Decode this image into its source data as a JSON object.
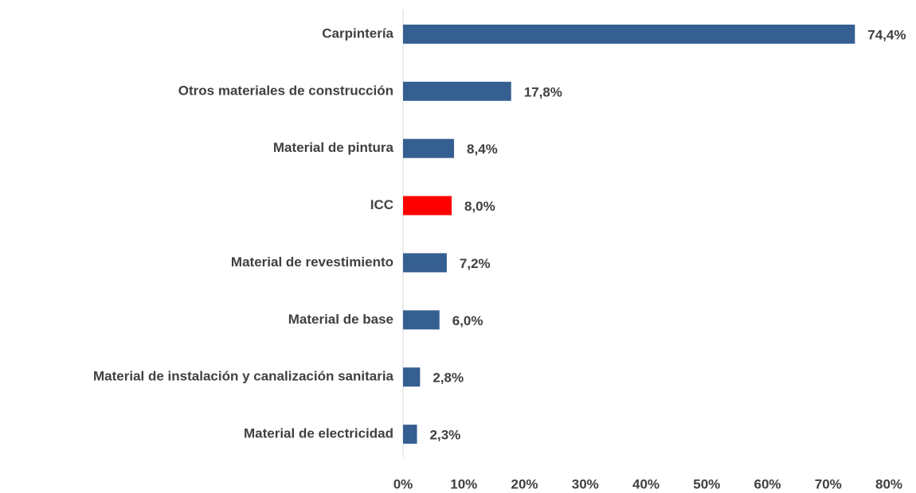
{
  "chart_data": {
    "type": "hbar",
    "categories": [
      "Carpintería",
      "Otros materiales de construcción",
      "Material de pintura",
      "ICC",
      "Material de revestimiento",
      "Material de base",
      "Material de instalación y canalización sanitaria",
      "Material de electricidad"
    ],
    "values": [
      74.4,
      17.8,
      8.4,
      8.0,
      7.2,
      6.0,
      2.8,
      2.3
    ],
    "value_labels": [
      "74,4%",
      "17,8%",
      "8,4%",
      "8,0%",
      "7,2%",
      "6,0%",
      "2,8%",
      "2,3%"
    ],
    "colors": [
      "#365f91",
      "#365f91",
      "#365f91",
      "#ff0000",
      "#365f91",
      "#365f91",
      "#365f91",
      "#365f91"
    ],
    "xlim": [
      0,
      80
    ],
    "xticks": [
      {
        "value": 0,
        "label": "0%"
      },
      {
        "value": 10,
        "label": "10%"
      },
      {
        "value": 20,
        "label": "20%"
      },
      {
        "value": 30,
        "label": "30%"
      },
      {
        "value": 40,
        "label": "40%"
      },
      {
        "value": 50,
        "label": "50%"
      },
      {
        "value": 60,
        "label": "60%"
      },
      {
        "value": 70,
        "label": "70%"
      },
      {
        "value": 80,
        "label": "80%"
      }
    ],
    "grid": false
  }
}
